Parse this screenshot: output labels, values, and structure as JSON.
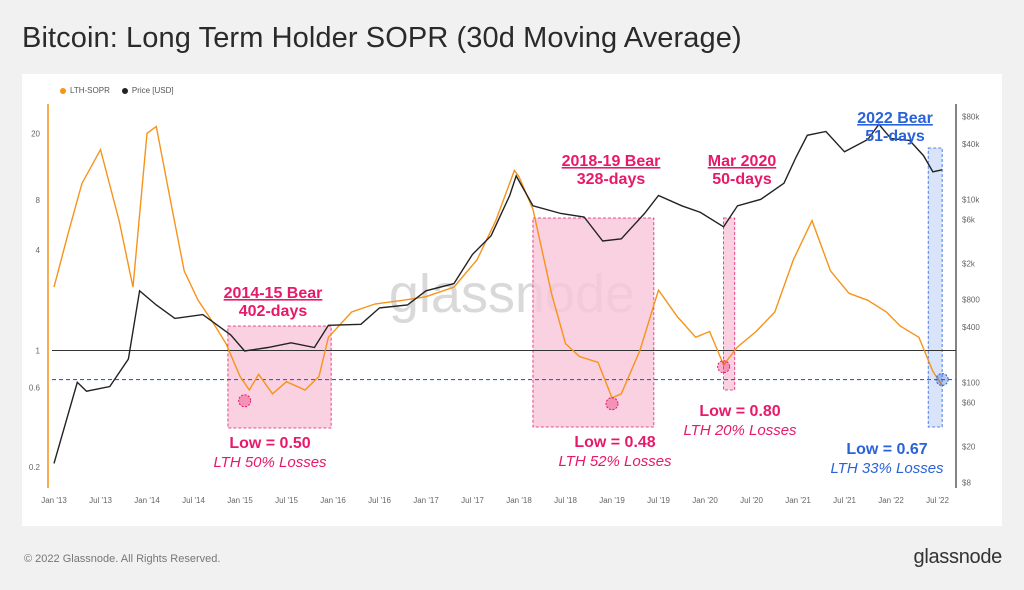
{
  "title": "Bitcoin: Long Term Holder SOPR (30d Moving Average)",
  "footer": {
    "copyright": "© 2022 Glassnode. All Rights Reserved.",
    "brand": "glassnode"
  },
  "watermark": "glassnode",
  "colors": {
    "sopr": "#f7931a",
    "price": "#222222",
    "bear_pink": "#e8196a",
    "bear_blue": "#2a63d8",
    "shade_pink": "#f9c6d8",
    "shade_blue": "#cfdcf7"
  },
  "chart_data": {
    "type": "line",
    "title": "Bitcoin: Long Term Holder SOPR (30d Moving Average)",
    "legend": [
      {
        "name": "LTH-SOPR",
        "color": "#f7931a"
      },
      {
        "name": "Price [USD]",
        "color": "#222222"
      }
    ],
    "legend_position": "top-left",
    "x_ticks": [
      "Jan '13",
      "Jul '13",
      "Jan '14",
      "Jul '14",
      "Jan '15",
      "Jul '15",
      "Jan '16",
      "Jul '16",
      "Jan '17",
      "Jul '17",
      "Jan '18",
      "Jul '18",
      "Jan '19",
      "Jul '19",
      "Jan '20",
      "Jul '20",
      "Jan '21",
      "Jul '21",
      "Jan '22",
      "Jul '22"
    ],
    "y_left": {
      "scale": "log",
      "ticks": [
        "0.2",
        "0.6",
        "1",
        "4",
        "8",
        "20"
      ],
      "tick_values": [
        0.2,
        0.6,
        1,
        4,
        8,
        20
      ]
    },
    "y_right": {
      "scale": "log",
      "ticks": [
        "$8",
        "$20",
        "$60",
        "$100",
        "$400",
        "$800",
        "$2k",
        "$6k",
        "$10k",
        "$40k",
        "$80k"
      ],
      "tick_values": [
        8,
        20,
        60,
        100,
        400,
        800,
        2000,
        6000,
        10000,
        40000,
        80000
      ]
    },
    "series": [
      {
        "name": "LTH-SOPR",
        "axis": "left",
        "points": [
          [
            2013.0,
            2.4
          ],
          [
            2013.15,
            5
          ],
          [
            2013.3,
            10
          ],
          [
            2013.5,
            16
          ],
          [
            2013.7,
            6
          ],
          [
            2013.85,
            2.4
          ],
          [
            2014.0,
            20
          ],
          [
            2014.1,
            22
          ],
          [
            2014.25,
            8
          ],
          [
            2014.4,
            3
          ],
          [
            2014.55,
            2
          ],
          [
            2014.7,
            1.5
          ],
          [
            2014.85,
            1.1
          ],
          [
            2015.0,
            0.7
          ],
          [
            2015.1,
            0.58
          ],
          [
            2015.2,
            0.72
          ],
          [
            2015.35,
            0.55
          ],
          [
            2015.5,
            0.65
          ],
          [
            2015.7,
            0.58
          ],
          [
            2015.85,
            0.7
          ],
          [
            2015.95,
            1.2
          ],
          [
            2016.2,
            1.7
          ],
          [
            2016.45,
            1.9
          ],
          [
            2016.75,
            2.0
          ],
          [
            2017.0,
            2.1
          ],
          [
            2017.3,
            2.4
          ],
          [
            2017.55,
            3.5
          ],
          [
            2017.75,
            6
          ],
          [
            2017.95,
            12
          ],
          [
            2018.0,
            11
          ],
          [
            2018.15,
            7
          ],
          [
            2018.35,
            2.2
          ],
          [
            2018.5,
            1.1
          ],
          [
            2018.65,
            0.92
          ],
          [
            2018.85,
            0.85
          ],
          [
            2019.0,
            0.52
          ],
          [
            2019.1,
            0.55
          ],
          [
            2019.3,
            1.0
          ],
          [
            2019.5,
            2.3
          ],
          [
            2019.7,
            1.6
          ],
          [
            2019.9,
            1.2
          ],
          [
            2020.05,
            1.3
          ],
          [
            2020.2,
            0.82
          ],
          [
            2020.35,
            1.05
          ],
          [
            2020.55,
            1.3
          ],
          [
            2020.75,
            1.7
          ],
          [
            2020.95,
            3.5
          ],
          [
            2021.15,
            6
          ],
          [
            2021.35,
            3
          ],
          [
            2021.55,
            2.2
          ],
          [
            2021.75,
            2.0
          ],
          [
            2021.95,
            1.7
          ],
          [
            2022.1,
            1.4
          ],
          [
            2022.3,
            1.2
          ],
          [
            2022.45,
            0.75
          ],
          [
            2022.55,
            0.62
          ]
        ]
      },
      {
        "name": "Price [USD]",
        "axis": "right",
        "points": [
          [
            2013.0,
            13
          ],
          [
            2013.25,
            100
          ],
          [
            2013.35,
            80
          ],
          [
            2013.6,
            90
          ],
          [
            2013.8,
            180
          ],
          [
            2013.92,
            1000
          ],
          [
            2014.1,
            700
          ],
          [
            2014.3,
            500
          ],
          [
            2014.6,
            550
          ],
          [
            2014.9,
            330
          ],
          [
            2015.05,
            220
          ],
          [
            2015.3,
            240
          ],
          [
            2015.55,
            270
          ],
          [
            2015.8,
            240
          ],
          [
            2015.95,
            420
          ],
          [
            2016.3,
            430
          ],
          [
            2016.5,
            650
          ],
          [
            2016.8,
            700
          ],
          [
            2017.0,
            1000
          ],
          [
            2017.3,
            1200
          ],
          [
            2017.5,
            2500
          ],
          [
            2017.7,
            4000
          ],
          [
            2017.9,
            11000
          ],
          [
            2017.97,
            18000
          ],
          [
            2018.15,
            8500
          ],
          [
            2018.45,
            7000
          ],
          [
            2018.7,
            6400
          ],
          [
            2018.9,
            3500
          ],
          [
            2019.1,
            3700
          ],
          [
            2019.35,
            7000
          ],
          [
            2019.5,
            11000
          ],
          [
            2019.75,
            8500
          ],
          [
            2019.95,
            7200
          ],
          [
            2020.2,
            5000
          ],
          [
            2020.35,
            8500
          ],
          [
            2020.6,
            10000
          ],
          [
            2020.85,
            15000
          ],
          [
            2020.98,
            29000
          ],
          [
            2021.1,
            50000
          ],
          [
            2021.3,
            55000
          ],
          [
            2021.5,
            33000
          ],
          [
            2021.75,
            45000
          ],
          [
            2021.87,
            66000
          ],
          [
            2022.0,
            46000
          ],
          [
            2022.2,
            44000
          ],
          [
            2022.35,
            30000
          ],
          [
            2022.45,
            20000
          ],
          [
            2022.55,
            21000
          ]
        ]
      }
    ],
    "reference_lines": [
      {
        "value": 1,
        "axis": "left",
        "style": "solid"
      },
      {
        "value": 0.67,
        "axis": "left",
        "style": "dashed"
      }
    ],
    "annotations": [
      {
        "label": "2014-15 Bear",
        "duration": "402-days",
        "start": 2014.87,
        "end": 2015.98,
        "low": "Low = 0.50",
        "losses": "LTH 50% Losses",
        "low_x": 2015.05,
        "low_y": 0.5,
        "color": "pink"
      },
      {
        "label": "2018-19 Bear",
        "duration": "328-days",
        "start": 2018.15,
        "end": 2019.45,
        "low": "Low = 0.48",
        "losses": "LTH 52% Losses",
        "low_x": 2019.0,
        "low_y": 0.48,
        "color": "pink"
      },
      {
        "label": "Mar 2020",
        "duration": "50-days",
        "start": 2020.2,
        "end": 2020.32,
        "low": "Low = 0.80",
        "losses": "LTH 20% Losses",
        "low_x": 2020.2,
        "low_y": 0.8,
        "color": "pink"
      },
      {
        "label": "2022 Bear",
        "duration": "51-days",
        "start": 2022.4,
        "end": 2022.55,
        "low": "Low = 0.67",
        "losses": "LTH 33% Losses",
        "low_x": 2022.55,
        "low_y": 0.67,
        "color": "blue"
      }
    ]
  }
}
